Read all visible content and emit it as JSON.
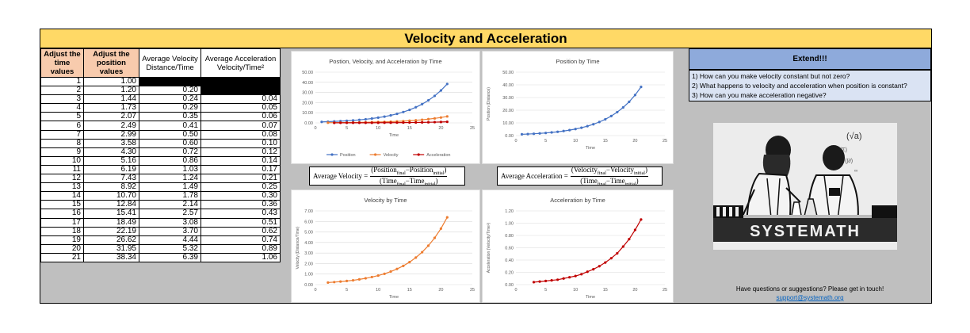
{
  "sheet_title": "Velocity and Acceleration",
  "headers": {
    "time": "Adjust the time values",
    "position": "Adjust the position values",
    "velocity": "Average Velocity Distance/Time",
    "acceleration": "Average Acceleration Velocity/Time²"
  },
  "rows": [
    {
      "t": "1",
      "p": "1.00",
      "v": "",
      "a": ""
    },
    {
      "t": "2",
      "p": "1.20",
      "v": "0.20",
      "a": ""
    },
    {
      "t": "3",
      "p": "1.44",
      "v": "0.24",
      "a": "0.04"
    },
    {
      "t": "4",
      "p": "1.73",
      "v": "0.29",
      "a": "0.05"
    },
    {
      "t": "5",
      "p": "2.07",
      "v": "0.35",
      "a": "0.06"
    },
    {
      "t": "6",
      "p": "2.49",
      "v": "0.41",
      "a": "0.07"
    },
    {
      "t": "7",
      "p": "2.99",
      "v": "0.50",
      "a": "0.08"
    },
    {
      "t": "8",
      "p": "3.58",
      "v": "0.60",
      "a": "0.10"
    },
    {
      "t": "9",
      "p": "4.30",
      "v": "0.72",
      "a": "0.12"
    },
    {
      "t": "10",
      "p": "5.16",
      "v": "0.86",
      "a": "0.14"
    },
    {
      "t": "11",
      "p": "6.19",
      "v": "1.03",
      "a": "0.17"
    },
    {
      "t": "12",
      "p": "7.43",
      "v": "1.24",
      "a": "0.21"
    },
    {
      "t": "13",
      "p": "8.92",
      "v": "1.49",
      "a": "0.25"
    },
    {
      "t": "14",
      "p": "10.70",
      "v": "1.78",
      "a": "0.30"
    },
    {
      "t": "15",
      "p": "12.84",
      "v": "2.14",
      "a": "0.36"
    },
    {
      "t": "16",
      "p": "15.41",
      "v": "2.57",
      "a": "0.43"
    },
    {
      "t": "17",
      "p": "18.49",
      "v": "3.08",
      "a": "0.51"
    },
    {
      "t": "18",
      "p": "22.19",
      "v": "3.70",
      "a": "0.62"
    },
    {
      "t": "19",
      "p": "26.62",
      "v": "4.44",
      "a": "0.74"
    },
    {
      "t": "20",
      "p": "31.95",
      "v": "5.32",
      "a": "0.89"
    },
    {
      "t": "21",
      "p": "38.34",
      "v": "6.39",
      "a": "1.06"
    }
  ],
  "formulas": {
    "velocity_label": "Average Velocity =",
    "velocity_num": "(Position",
    "velocity_num_sub1": "final",
    "velocity_num_mid": "−Position",
    "velocity_num_sub2": "initial",
    "velocity_num_end": ")",
    "velocity_den": "(Time",
    "velocity_den_sub1": "final",
    "velocity_den_mid": "−Time",
    "velocity_den_sub2": "initial",
    "velocity_den_end": ")",
    "accel_label": "Average Acceleration =",
    "accel_num": "(Velocity",
    "accel_num_sub1": "final",
    "accel_num_mid": "−Velocity",
    "accel_num_sub2": "initial",
    "accel_num_end": ")",
    "accel_den": "(Time",
    "accel_den_sub1": "final",
    "accel_den_mid": "−Time",
    "accel_den_sub2": "initial",
    "accel_den_end": ")"
  },
  "extend": {
    "title": "Extend!!!",
    "questions": [
      "1) How can you make velocity constant but not zero?",
      "2) What happens to velocity and acceleration when position is constant?",
      "3) How can you make acceleration negative?"
    ]
  },
  "logo_text": "SYSTEMATH",
  "contact": {
    "text": "Have questions or suggestions? Please get in touch!",
    "email": "support@systemath.org"
  },
  "colors": {
    "position": "#4472c4",
    "velocity": "#ed7d31",
    "acceleration": "#c00000"
  },
  "chart_data": [
    {
      "type": "line",
      "title": "Postion, Velocity, and Acceleration by Time",
      "xlabel": "Time",
      "ylabel": "",
      "xlim": [
        0,
        25
      ],
      "ylim": [
        0,
        50
      ],
      "xticks": [
        "0",
        "5",
        "10",
        "15",
        "20",
        "25"
      ],
      "yticks": [
        "0.00",
        "10.00",
        "20.00",
        "30.00",
        "40.00",
        "50.00"
      ],
      "legend": "bottom",
      "series": [
        {
          "name": "Position",
          "color": "#4472c4",
          "x": [
            1,
            2,
            3,
            4,
            5,
            6,
            7,
            8,
            9,
            10,
            11,
            12,
            13,
            14,
            15,
            16,
            17,
            18,
            19,
            20,
            21
          ],
          "y": [
            1.0,
            1.2,
            1.44,
            1.73,
            2.07,
            2.49,
            2.99,
            3.58,
            4.3,
            5.16,
            6.19,
            7.43,
            8.92,
            10.7,
            12.84,
            15.41,
            18.49,
            22.19,
            26.62,
            31.95,
            38.34
          ]
        },
        {
          "name": "Velocity",
          "color": "#ed7d31",
          "x": [
            2,
            3,
            4,
            5,
            6,
            7,
            8,
            9,
            10,
            11,
            12,
            13,
            14,
            15,
            16,
            17,
            18,
            19,
            20,
            21
          ],
          "y": [
            0.2,
            0.24,
            0.29,
            0.35,
            0.41,
            0.5,
            0.6,
            0.72,
            0.86,
            1.03,
            1.24,
            1.49,
            1.78,
            2.14,
            2.57,
            3.08,
            3.7,
            4.44,
            5.32,
            6.39
          ]
        },
        {
          "name": "Acceleration",
          "color": "#c00000",
          "x": [
            3,
            4,
            5,
            6,
            7,
            8,
            9,
            10,
            11,
            12,
            13,
            14,
            15,
            16,
            17,
            18,
            19,
            20,
            21
          ],
          "y": [
            0.04,
            0.05,
            0.06,
            0.07,
            0.08,
            0.1,
            0.12,
            0.14,
            0.17,
            0.21,
            0.25,
            0.3,
            0.36,
            0.43,
            0.51,
            0.62,
            0.74,
            0.89,
            1.06
          ]
        }
      ]
    },
    {
      "type": "line",
      "title": "Position by Time",
      "xlabel": "Time",
      "ylabel": "Position (Distance)",
      "xlim": [
        0,
        25
      ],
      "ylim": [
        0,
        50
      ],
      "xticks": [
        "0",
        "5",
        "10",
        "15",
        "20",
        "25"
      ],
      "yticks": [
        "0.00",
        "10.00",
        "20.00",
        "30.00",
        "40.00",
        "50.00"
      ],
      "series": [
        {
          "name": "",
          "color": "#4472c4",
          "x": [
            1,
            2,
            3,
            4,
            5,
            6,
            7,
            8,
            9,
            10,
            11,
            12,
            13,
            14,
            15,
            16,
            17,
            18,
            19,
            20,
            21
          ],
          "y": [
            1.0,
            1.2,
            1.44,
            1.73,
            2.07,
            2.49,
            2.99,
            3.58,
            4.3,
            5.16,
            6.19,
            7.43,
            8.92,
            10.7,
            12.84,
            15.41,
            18.49,
            22.19,
            26.62,
            31.95,
            38.34
          ]
        }
      ]
    },
    {
      "type": "line",
      "title": "Velocity by Time",
      "xlabel": "Time",
      "ylabel": "Velocity (Distance/Time)",
      "xlim": [
        0,
        25
      ],
      "ylim": [
        0,
        7
      ],
      "xticks": [
        "0",
        "5",
        "10",
        "15",
        "20",
        "25"
      ],
      "yticks": [
        "0.00",
        "1.00",
        "2.00",
        "3.00",
        "4.00",
        "5.00",
        "6.00",
        "7.00"
      ],
      "series": [
        {
          "name": "",
          "color": "#ed7d31",
          "x": [
            2,
            3,
            4,
            5,
            6,
            7,
            8,
            9,
            10,
            11,
            12,
            13,
            14,
            15,
            16,
            17,
            18,
            19,
            20,
            21
          ],
          "y": [
            0.2,
            0.24,
            0.29,
            0.35,
            0.41,
            0.5,
            0.6,
            0.72,
            0.86,
            1.03,
            1.24,
            1.49,
            1.78,
            2.14,
            2.57,
            3.08,
            3.7,
            4.44,
            5.32,
            6.39
          ]
        }
      ]
    },
    {
      "type": "line",
      "title": "Acceleration by Time",
      "xlabel": "Time",
      "ylabel": "Acceleration (Velocity/Time²)",
      "xlim": [
        0,
        25
      ],
      "ylim": [
        0,
        1.2
      ],
      "xticks": [
        "0",
        "5",
        "10",
        "15",
        "20",
        "25"
      ],
      "yticks": [
        "0.00",
        "0.20",
        "0.40",
        "0.60",
        "0.80",
        "1.00",
        "1.20"
      ],
      "series": [
        {
          "name": "",
          "color": "#c00000",
          "x": [
            3,
            4,
            5,
            6,
            7,
            8,
            9,
            10,
            11,
            12,
            13,
            14,
            15,
            16,
            17,
            18,
            19,
            20,
            21
          ],
          "y": [
            0.04,
            0.05,
            0.06,
            0.07,
            0.08,
            0.1,
            0.12,
            0.14,
            0.17,
            0.21,
            0.25,
            0.3,
            0.36,
            0.43,
            0.51,
            0.62,
            0.74,
            0.89,
            1.06
          ]
        }
      ]
    }
  ]
}
